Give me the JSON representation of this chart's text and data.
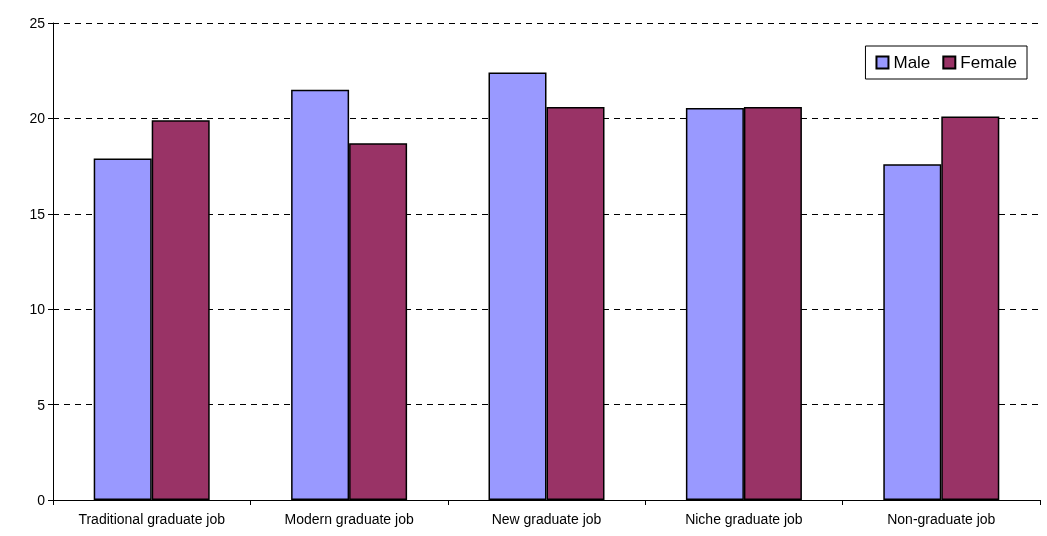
{
  "chart_data": {
    "type": "bar",
    "categories": [
      "Traditional graduate job",
      "Modern graduate job",
      "New graduate job",
      "Niche graduate job",
      "Non-graduate job"
    ],
    "series": [
      {
        "name": "Male",
        "color": "#9999ff",
        "values": [
          17.9,
          21.5,
          22.4,
          20.55,
          17.6
        ]
      },
      {
        "name": "Female",
        "color": "#993366",
        "values": [
          19.9,
          18.7,
          20.6,
          20.6,
          20.1
        ]
      }
    ],
    "ylim": [
      0,
      25
    ],
    "yticks": [
      0,
      5,
      10,
      15,
      20,
      25
    ],
    "grid": "y",
    "legend": "top right"
  }
}
